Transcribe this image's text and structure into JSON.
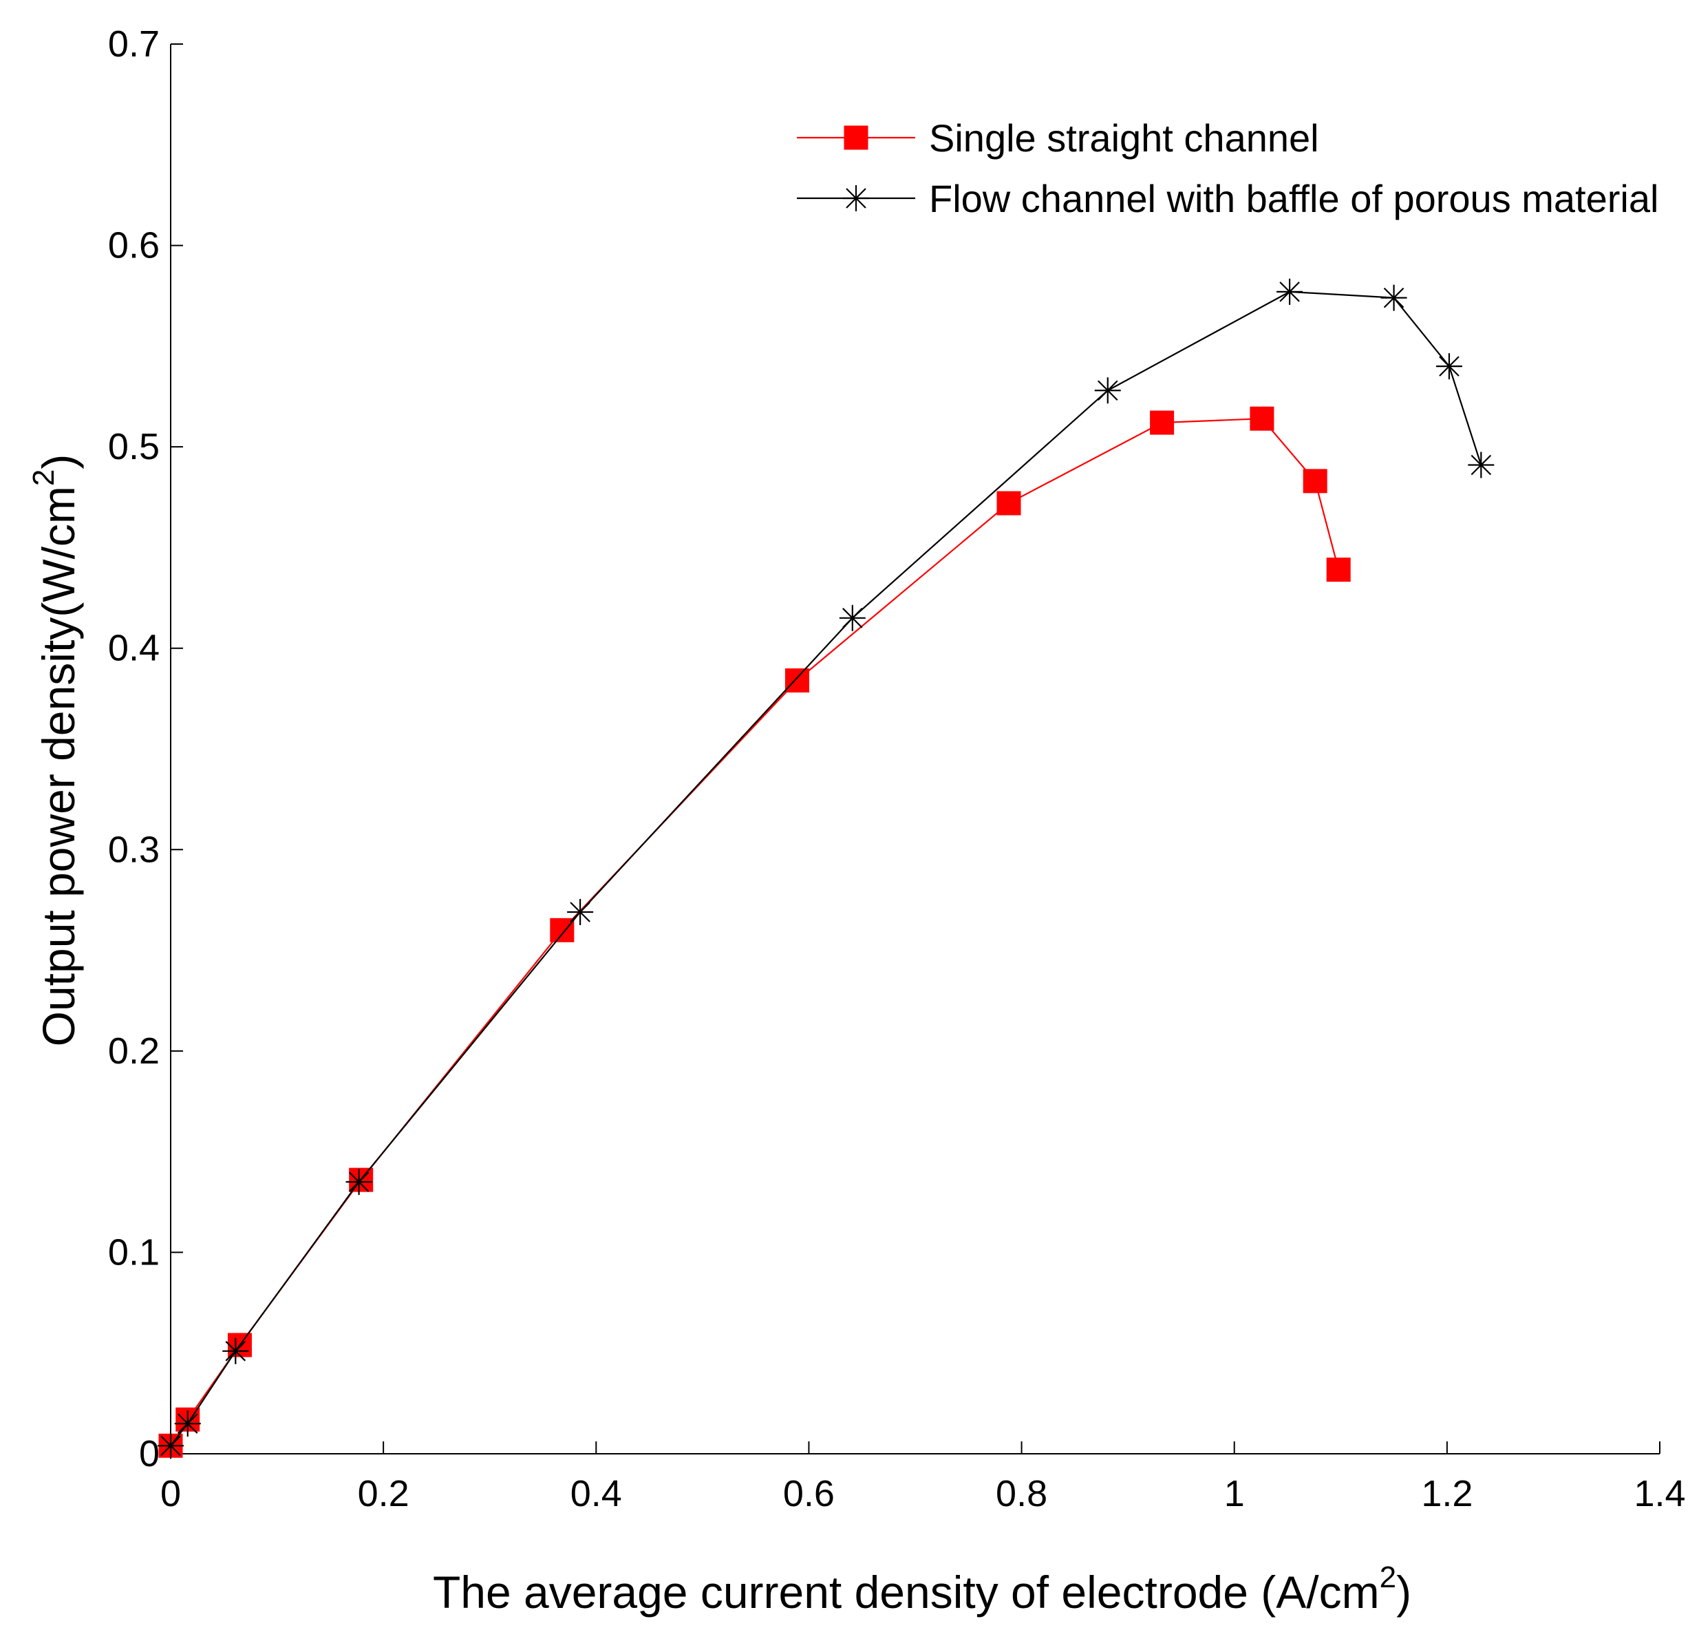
{
  "chart_data": {
    "type": "line",
    "title": "",
    "xlabel": "The average current density of electrode (A/cm",
    "xlabel_sup": "2",
    "xlabel_tail": ")",
    "ylabel": "Output power density(W/cm",
    "ylabel_sup": "2",
    "ylabel_tail": ")",
    "xlim": [
      0,
      1.4
    ],
    "ylim": [
      0,
      0.7
    ],
    "xticks": [
      0,
      0.2,
      0.4,
      0.6,
      0.8,
      1,
      1.2,
      1.4
    ],
    "xtick_labels": [
      "0",
      "0.2",
      "0.4",
      "0.6",
      "0.8",
      "1",
      "1.2",
      "1.4"
    ],
    "yticks": [
      0,
      0.1,
      0.2,
      0.3,
      0.4,
      0.5,
      0.6,
      0.7
    ],
    "ytick_labels": [
      "0",
      "0.1",
      "0.2",
      "0.3",
      "0.4",
      "0.5",
      "0.6",
      "0.7"
    ],
    "grid": false,
    "legend_position": "top-right",
    "series": [
      {
        "name": "Single straight channel",
        "color": "#ff0000",
        "marker": "square",
        "x": [
          0.0,
          0.016,
          0.065,
          0.179,
          0.368,
          0.589,
          0.788,
          0.932,
          1.026,
          1.076,
          1.098
        ],
        "y": [
          0.004,
          0.017,
          0.054,
          0.136,
          0.26,
          0.384,
          0.472,
          0.512,
          0.514,
          0.483,
          0.439
        ]
      },
      {
        "name": "Flow channel with baffle of porous material",
        "color": "#000000",
        "marker": "asterisk",
        "x": [
          0.0,
          0.016,
          0.061,
          0.177,
          0.385,
          0.641,
          0.881,
          1.052,
          1.15,
          1.202,
          1.232
        ],
        "y": [
          0.004,
          0.015,
          0.051,
          0.135,
          0.269,
          0.415,
          0.528,
          0.577,
          0.574,
          0.54,
          0.491
        ]
      }
    ]
  }
}
